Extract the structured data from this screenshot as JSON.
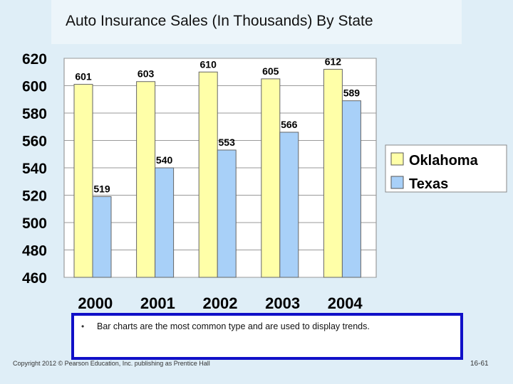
{
  "slide": {
    "title": "Auto Insurance Sales (In Thousands) By State",
    "note": "Bar charts are the most common type and are used to display trends.",
    "copyright": "Copyright 2012 © Pearson Education, Inc. publishing as Prentice Hall",
    "page_number": "16-61"
  },
  "colors": {
    "oklahoma": "#ffffa8",
    "texas": "#a8d0f8",
    "background": "#dfeef7",
    "note_border": "#1010c8"
  },
  "chart_data": {
    "type": "bar",
    "title": "",
    "categories": [
      "2000",
      "2001",
      "2002",
      "2003",
      "2004"
    ],
    "series": [
      {
        "name": "Oklahoma",
        "values": [
          601,
          603,
          610,
          605,
          612
        ]
      },
      {
        "name": "Texas",
        "values": [
          519,
          540,
          553,
          566,
          589
        ]
      }
    ],
    "y_ticks": [
      "460",
      "480",
      "500",
      "520",
      "540",
      "560",
      "580",
      "600",
      "620"
    ],
    "ylim": [
      460,
      620
    ],
    "grid": true,
    "legend_position": "right",
    "data_labels": true
  }
}
